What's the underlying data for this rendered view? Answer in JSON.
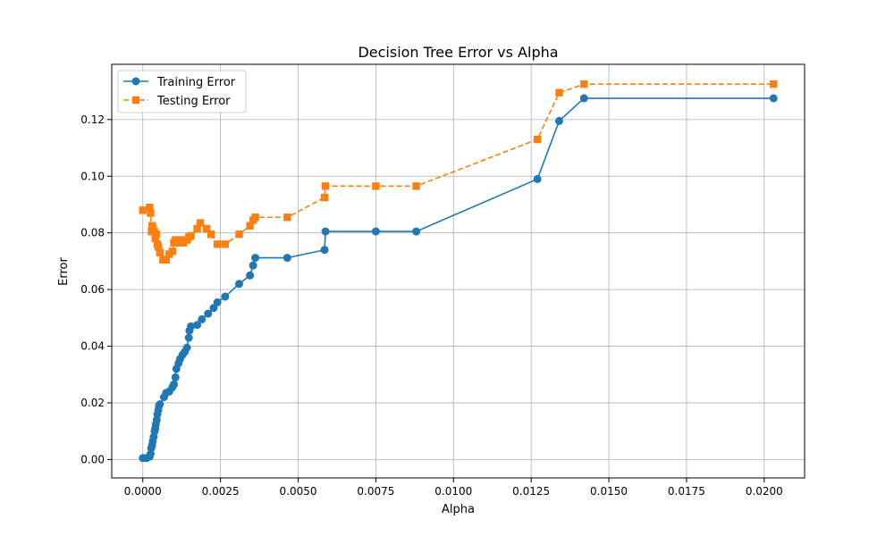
{
  "chart_data": {
    "type": "line",
    "title": "Decision Tree Error vs Alpha",
    "xlabel": "Alpha",
    "ylabel": "Error",
    "xlim": [
      -0.001,
      0.0213
    ],
    "ylim": [
      -0.0065,
      0.1395
    ],
    "x_ticks": [
      0.0,
      0.0025,
      0.005,
      0.0075,
      0.01,
      0.0125,
      0.015,
      0.0175,
      0.02
    ],
    "x_tick_labels": [
      "0.0000",
      "0.0025",
      "0.0050",
      "0.0075",
      "0.0100",
      "0.0125",
      "0.0150",
      "0.0175",
      "0.0200"
    ],
    "y_ticks": [
      0.0,
      0.02,
      0.04,
      0.06,
      0.08,
      0.1,
      0.12
    ],
    "y_tick_labels": [
      "0.00",
      "0.02",
      "0.04",
      "0.06",
      "0.08",
      "0.10",
      "0.12"
    ],
    "grid": true,
    "legend_position": "top-left",
    "series": [
      {
        "name": "Training Error",
        "color": "#1f77b4",
        "marker": "circle",
        "line_style": "solid",
        "x": [
          0.0,
          0.00012,
          0.00022,
          0.00025,
          0.00027,
          0.0003,
          0.00032,
          0.00035,
          0.00038,
          0.0004,
          0.00042,
          0.00045,
          0.00047,
          0.0005,
          0.00052,
          0.00055,
          0.00068,
          0.00075,
          0.00085,
          0.00095,
          0.001,
          0.00105,
          0.00108,
          0.00115,
          0.0012,
          0.00128,
          0.00135,
          0.00142,
          0.00148,
          0.0015,
          0.00155,
          0.00175,
          0.0019,
          0.0021,
          0.00228,
          0.0024,
          0.00265,
          0.0031,
          0.00345,
          0.00355,
          0.00362,
          0.00465,
          0.00585,
          0.00588,
          0.0075,
          0.0088,
          0.0127,
          0.0134,
          0.0142,
          0.0203
        ],
        "values": [
          0.0005,
          0.0005,
          0.001,
          0.002,
          0.004,
          0.005,
          0.0065,
          0.008,
          0.01,
          0.011,
          0.0125,
          0.014,
          0.016,
          0.0175,
          0.019,
          0.0195,
          0.022,
          0.0235,
          0.024,
          0.0255,
          0.0265,
          0.029,
          0.032,
          0.034,
          0.0355,
          0.037,
          0.038,
          0.0395,
          0.043,
          0.0455,
          0.047,
          0.0475,
          0.0495,
          0.0515,
          0.0535,
          0.0555,
          0.0575,
          0.062,
          0.065,
          0.0685,
          0.0712,
          0.0712,
          0.074,
          0.0805,
          0.0805,
          0.0805,
          0.099,
          0.1195,
          0.1275,
          0.1275
        ]
      },
      {
        "name": "Testing Error",
        "color": "#ff7f0e",
        "marker": "square",
        "line_style": "dashed",
        "x": [
          0.0,
          0.00022,
          0.00025,
          0.00028,
          0.0003,
          0.00033,
          0.00037,
          0.0004,
          0.00043,
          0.00047,
          0.0005,
          0.00055,
          0.00065,
          0.00075,
          0.00085,
          0.00095,
          0.001,
          0.00105,
          0.00115,
          0.00122,
          0.0013,
          0.00142,
          0.00148,
          0.00155,
          0.00175,
          0.00185,
          0.00205,
          0.0022,
          0.0024,
          0.00265,
          0.0031,
          0.00345,
          0.00355,
          0.00362,
          0.00465,
          0.00585,
          0.00588,
          0.0075,
          0.0088,
          0.0127,
          0.0134,
          0.0142,
          0.0203
        ],
        "values": [
          0.088,
          0.089,
          0.087,
          0.0805,
          0.0825,
          0.0815,
          0.0805,
          0.078,
          0.0795,
          0.076,
          0.075,
          0.073,
          0.0705,
          0.0705,
          0.0725,
          0.0735,
          0.0765,
          0.0775,
          0.0765,
          0.0775,
          0.0765,
          0.0775,
          0.0785,
          0.079,
          0.0815,
          0.0835,
          0.0815,
          0.0795,
          0.076,
          0.076,
          0.0795,
          0.0825,
          0.0845,
          0.0855,
          0.0855,
          0.0925,
          0.0965,
          0.0965,
          0.0965,
          0.113,
          0.1295,
          0.1325,
          0.1325
        ]
      }
    ]
  }
}
